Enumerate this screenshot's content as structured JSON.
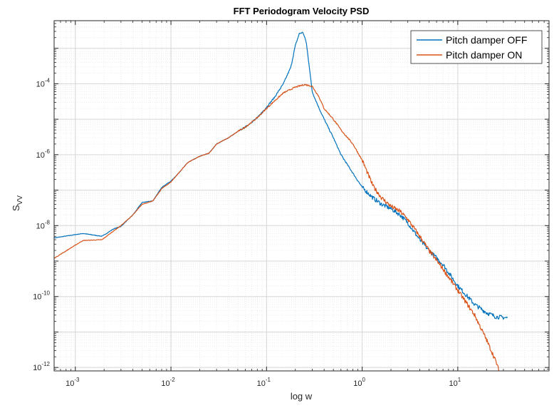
{
  "chart_data": {
    "type": "line",
    "title": "FFT Periodogram Velocity PSD",
    "xlabel": "log w",
    "ylabel": "S",
    "ylabel_subscript": "VV",
    "xscale": "log",
    "yscale": "log",
    "xlim": [
      0.0006,
      90
    ],
    "ylim": [
      8e-13,
      0.006
    ],
    "grid": true,
    "minor_grid": true,
    "legend_position": "top-right",
    "x_ticks": [
      {
        "value": 0.001,
        "base": "10",
        "exp": "-3"
      },
      {
        "value": 0.01,
        "base": "10",
        "exp": "-2"
      },
      {
        "value": 0.1,
        "base": "10",
        "exp": "-1"
      },
      {
        "value": 1,
        "base": "10",
        "exp": "0"
      },
      {
        "value": 10,
        "base": "10",
        "exp": "1"
      }
    ],
    "y_ticks": [
      {
        "value": 1e-12,
        "base": "10",
        "exp": "-12"
      },
      {
        "value": 1e-10,
        "base": "10",
        "exp": "-10"
      },
      {
        "value": 1e-08,
        "base": "10",
        "exp": "-8"
      },
      {
        "value": 1e-06,
        "base": "10",
        "exp": "-6"
      },
      {
        "value": 0.0001,
        "base": "10",
        "exp": "-4"
      }
    ],
    "series": [
      {
        "name": "Pitch damper OFF",
        "color": "#0072bd",
        "x": [
          0.0006,
          0.0012,
          0.0019,
          0.0025,
          0.003,
          0.004,
          0.005,
          0.0065,
          0.008,
          0.01,
          0.012,
          0.015,
          0.02,
          0.025,
          0.03,
          0.04,
          0.05,
          0.06,
          0.08,
          0.1,
          0.12,
          0.15,
          0.18,
          0.2,
          0.22,
          0.24,
          0.26,
          0.28,
          0.3,
          0.35,
          0.4,
          0.5,
          0.6,
          0.8,
          1.0,
          1.3,
          1.6,
          2,
          2.5,
          3,
          4,
          5,
          7,
          10,
          15,
          20,
          25,
          33
        ],
        "y": [
          4.5e-09,
          6e-09,
          5e-09,
          8e-09,
          9.5e-09,
          2e-08,
          4.5e-08,
          5e-08,
          1.2e-07,
          1.8e-07,
          3e-07,
          6e-07,
          9e-07,
          1.1e-06,
          2e-06,
          3e-06,
          4.5e-06,
          6e-06,
          1.1e-05,
          2.2e-05,
          4e-05,
          0.0001,
          0.0003,
          0.0012,
          0.0026,
          0.0028,
          0.0015,
          0.0003,
          6e-05,
          2.2e-05,
          1e-05,
          3e-06,
          1e-06,
          3e-07,
          1.2e-07,
          6e-08,
          4e-08,
          3e-08,
          2e-08,
          1.2e-08,
          4e-09,
          2e-09,
          8e-10,
          2e-10,
          6e-11,
          3.5e-11,
          2.7e-11,
          2.5e-11
        ]
      },
      {
        "name": "Pitch damper ON",
        "color": "#d95319",
        "x": [
          0.0006,
          0.0012,
          0.0019,
          0.0025,
          0.003,
          0.004,
          0.005,
          0.0065,
          0.008,
          0.01,
          0.012,
          0.015,
          0.02,
          0.025,
          0.03,
          0.04,
          0.05,
          0.06,
          0.08,
          0.1,
          0.12,
          0.15,
          0.18,
          0.2,
          0.25,
          0.3,
          0.35,
          0.4,
          0.5,
          0.6,
          0.8,
          1.0,
          1.3,
          1.6,
          2,
          2.5,
          3,
          4,
          5,
          7,
          10,
          15,
          20,
          25,
          27
        ],
        "y": [
          1.2e-09,
          3.8e-09,
          4e-09,
          7e-09,
          1e-08,
          2e-08,
          4e-08,
          5e-08,
          1.1e-07,
          1.7e-07,
          3e-07,
          6e-07,
          9e-07,
          1.1e-06,
          2e-06,
          3e-06,
          4.5e-06,
          6e-06,
          1.1e-05,
          2e-05,
          3.2e-05,
          5.5e-05,
          7e-05,
          8e-05,
          9.5e-05,
          8.5e-05,
          4.5e-05,
          2e-05,
          1e-05,
          5e-06,
          2e-06,
          7e-07,
          1.3e-07,
          6e-08,
          3.5e-08,
          2.5e-08,
          1.5e-08,
          5e-09,
          2e-09,
          6e-10,
          1.5e-10,
          3e-11,
          6e-12,
          1.5e-12,
          8e-13
        ]
      }
    ]
  }
}
